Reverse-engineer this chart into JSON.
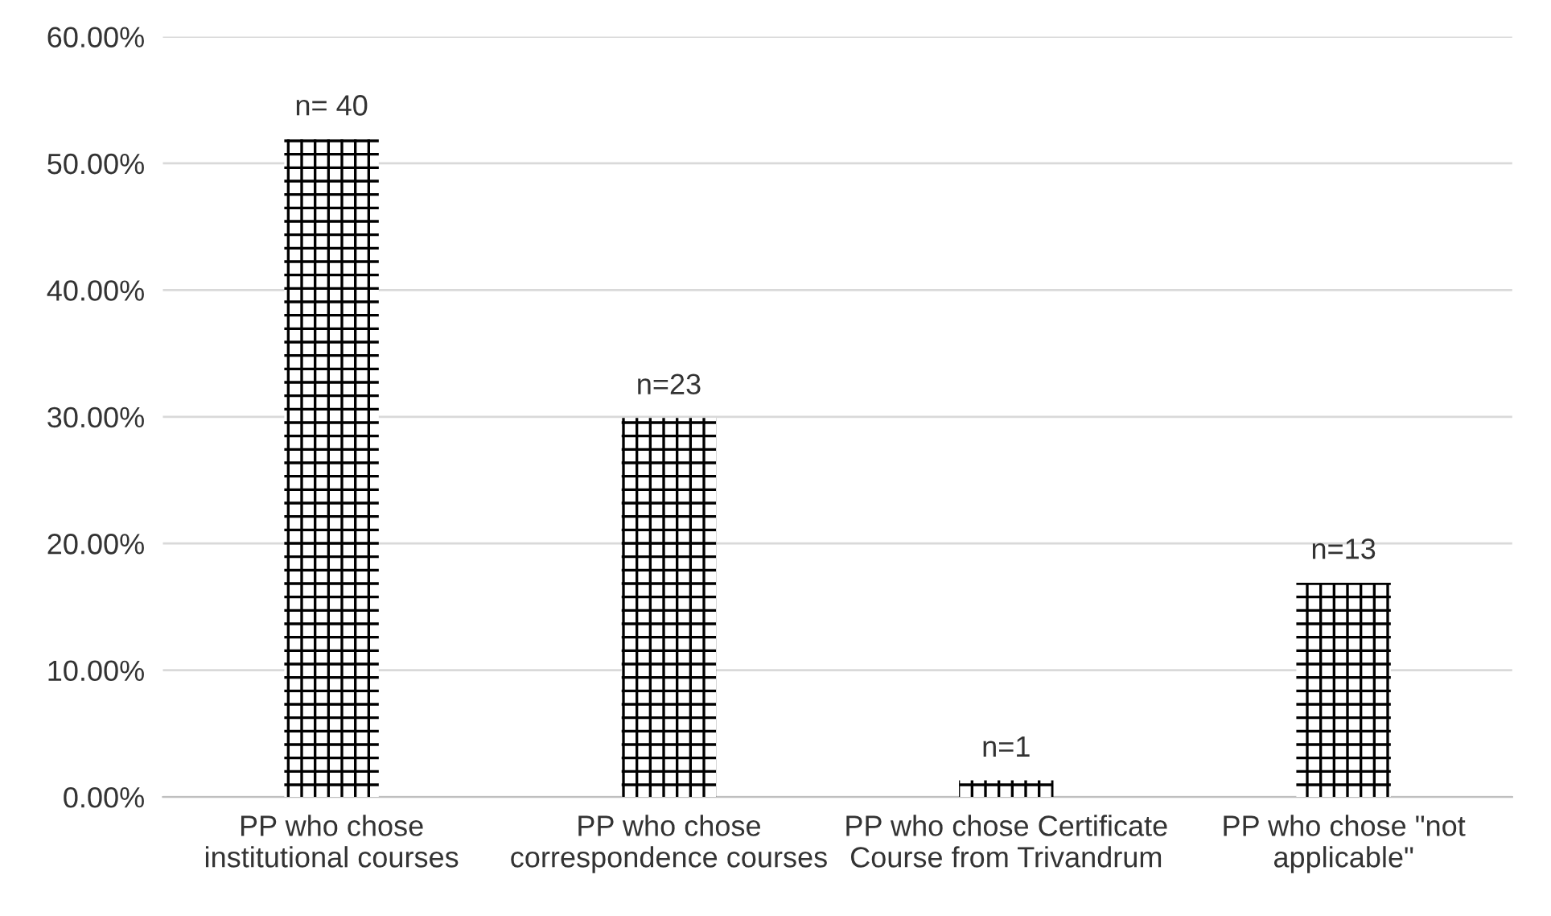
{
  "chart_data": {
    "type": "bar",
    "categories": [
      "PP who chose\ninstitutional courses",
      "PP who chose\ncorrespondence courses",
      "PP who chose Certificate\nCourse from Trivandrum",
      "PP who chose \"not\napplicable\""
    ],
    "values": [
      51.9,
      29.9,
      1.3,
      16.9
    ],
    "annotations": [
      {
        "text": "n= 40",
        "x": "PP who chose\ninstitutional courses",
        "y": 51.9
      },
      {
        "text": "n=23",
        "x": "PP who chose\ncorrespondence courses",
        "y": 29.9
      },
      {
        "text": "n=1",
        "x": "PP who chose Certificate\nCourse from Trivandrum",
        "y": 1.3
      },
      {
        "text": "n=13",
        "x": "PP who chose \"not\napplicable\"",
        "y": 16.9
      }
    ],
    "color": "#000000",
    "ylim": [
      0,
      60
    ],
    "yticks": [
      {
        "value": 0,
        "label": "0.00%"
      },
      {
        "value": 10,
        "label": "10.00%"
      },
      {
        "value": 20,
        "label": "20.00%"
      },
      {
        "value": 30,
        "label": "30.00%"
      },
      {
        "value": 40,
        "label": "40.00%"
      },
      {
        "value": 50,
        "label": "50.00%"
      },
      {
        "value": 60,
        "label": "60.00%"
      }
    ],
    "grid": "y"
  }
}
